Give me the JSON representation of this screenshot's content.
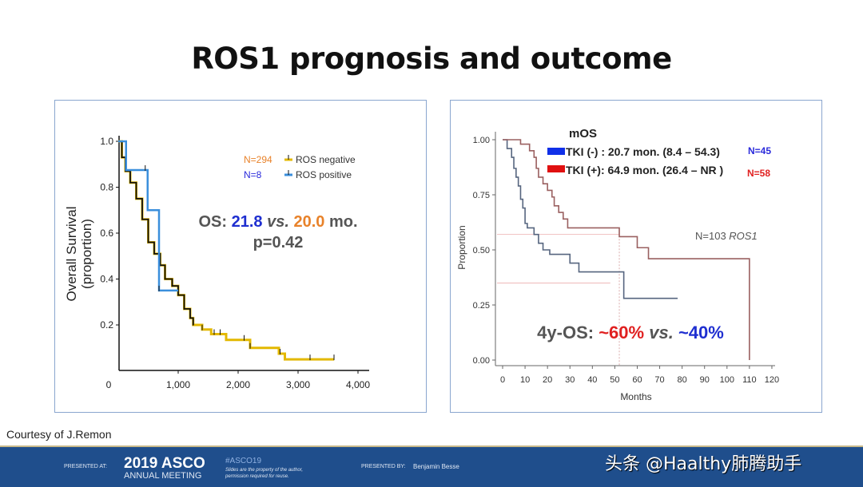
{
  "slide": {
    "title": "ROS1 prognosis and outcome",
    "courtesy": "Courtesy of J.Remon"
  },
  "footer": {
    "presented_at_label": "PRESENTED AT:",
    "meeting_year_name": "2019 ASCO",
    "meeting_sub": "ANNUAL MEETING",
    "hashtag": "#ASCO19",
    "disclaimer_1": "Slides are the property of the author,",
    "disclaimer_2": "permission required for reuse.",
    "presented_by_label": "PRESENTED BY:",
    "presenter": "Benjamin Besse",
    "watermark": "头条 @Haalthy肺腾助手",
    "bg_color": "#1f4e8c"
  },
  "chart_data": [
    {
      "type": "line",
      "subtype": "kaplan-meier-step",
      "ylabel": "Overall Survival (proportion)",
      "xlabel": "",
      "xlim": [
        0,
        4000
      ],
      "ylim": [
        0,
        1.0
      ],
      "x_ticks": [
        "0",
        "1,000",
        "2,000",
        "3,000",
        "4,000"
      ],
      "y_ticks": [
        "0.2",
        "0.4",
        "0.6",
        "0.8",
        "1.0"
      ],
      "grid": false,
      "legend_position": "top-right",
      "legend": [
        {
          "n": "N=294",
          "n_color": "#e8822a",
          "label": "ROS negative",
          "color": "#e3b800"
        },
        {
          "n": "N=8",
          "n_color": "#2a2adb",
          "label": "ROS positive",
          "color": "#3b8fdc"
        }
      ],
      "annotation": {
        "os_label": "OS:",
        "v1": "21.8",
        "vs": "vs.",
        "v2": "20.0",
        "unit": "mo.",
        "p": "p=0.42",
        "v1_color": "#1f2fd0",
        "v2_color": "#e8822a",
        "text_color": "#555555"
      },
      "series": [
        {
          "name": "ROS negative",
          "color": "#e3b800",
          "points": [
            [
              0,
              1.0
            ],
            [
              60,
              0.93
            ],
            [
              120,
              0.87
            ],
            [
              200,
              0.82
            ],
            [
              300,
              0.75
            ],
            [
              400,
              0.66
            ],
            [
              500,
              0.56
            ],
            [
              600,
              0.51
            ],
            [
              700,
              0.46
            ],
            [
              780,
              0.4
            ],
            [
              900,
              0.37
            ],
            [
              1000,
              0.33
            ],
            [
              1100,
              0.27
            ],
            [
              1200,
              0.23
            ],
            [
              1250,
              0.2
            ],
            [
              1400,
              0.18
            ],
            [
              1550,
              0.16
            ],
            [
              1800,
              0.135
            ],
            [
              2200,
              0.1
            ],
            [
              2680,
              0.075
            ],
            [
              2780,
              0.05
            ],
            [
              3600,
              0.05
            ]
          ],
          "censor_x": [
            500,
            700,
            900,
            1000,
            1100,
            1250,
            1400,
            1600,
            1700,
            2100,
            2200,
            2700,
            3200,
            3600
          ]
        },
        {
          "name": "ROS positive",
          "color": "#3b8fdc",
          "points": [
            [
              0,
              1.0
            ],
            [
              130,
              0.875
            ],
            [
              490,
              0.7
            ],
            [
              680,
              0.35
            ],
            [
              1000,
              0.35
            ]
          ],
          "censor_x": [
            450,
            680
          ]
        }
      ]
    },
    {
      "type": "line",
      "subtype": "kaplan-meier-step",
      "ylabel": "Proportion",
      "xlabel": "Months",
      "xlim": [
        0,
        120
      ],
      "ylim": [
        0,
        1.0
      ],
      "x_ticks": [
        "0",
        "10",
        "20",
        "30",
        "40",
        "50",
        "60",
        "70",
        "80",
        "90",
        "100",
        "110",
        "120"
      ],
      "y_ticks": [
        "0.00",
        "0.25",
        "0.50",
        "0.75",
        "1.00"
      ],
      "grid": false,
      "legend_position": "top",
      "legend_title": "mOS",
      "legend": [
        {
          "label": "TKI (-) : 20.7 mon. (8.4 – 54.3)",
          "n": "N=45",
          "n_color": "#2a2adb",
          "color": "#1030e8"
        },
        {
          "label": "TKI (+): 64.9 mon. (26.4 – NR )",
          "n": "N=58",
          "n_color": "#e02020",
          "color": "#e01010"
        }
      ],
      "note": {
        "prefix": "N=103 ",
        "gene": "ROS1"
      },
      "annotation": {
        "label": "4y-OS:",
        "v1": "~60%",
        "vs": "vs.",
        "v2": "~40%",
        "v1_color": "#e02020",
        "v2_color": "#1f2fd0",
        "text_color": "#555555"
      },
      "reference_lines": {
        "x": 52,
        "y": [
          0.57,
          0.35
        ]
      },
      "series": [
        {
          "name": "TKI (-)",
          "color": "#56657f",
          "points": [
            [
              0,
              1.0
            ],
            [
              2,
              0.96
            ],
            [
              4,
              0.92
            ],
            [
              5,
              0.87
            ],
            [
              6,
              0.83
            ],
            [
              7,
              0.79
            ],
            [
              8,
              0.73
            ],
            [
              9,
              0.69
            ],
            [
              10,
              0.62
            ],
            [
              11,
              0.6
            ],
            [
              14,
              0.57
            ],
            [
              16,
              0.53
            ],
            [
              18,
              0.5
            ],
            [
              21,
              0.48
            ],
            [
              30,
              0.44
            ],
            [
              34,
              0.4
            ],
            [
              54,
              0.4
            ],
            [
              54,
              0.28
            ],
            [
              78,
              0.28
            ]
          ]
        },
        {
          "name": "TKI (+)",
          "color": "#9a6060",
          "points": [
            [
              0,
              1.0
            ],
            [
              8,
              0.98
            ],
            [
              12,
              0.95
            ],
            [
              14,
              0.92
            ],
            [
              15,
              0.87
            ],
            [
              16,
              0.83
            ],
            [
              18,
              0.8
            ],
            [
              20,
              0.77
            ],
            [
              22,
              0.74
            ],
            [
              23,
              0.7
            ],
            [
              25,
              0.67
            ],
            [
              27,
              0.64
            ],
            [
              29,
              0.6
            ],
            [
              52,
              0.56
            ],
            [
              60,
              0.51
            ],
            [
              65,
              0.46
            ],
            [
              110,
              0.46
            ],
            [
              110,
              0.0
            ]
          ]
        }
      ]
    }
  ]
}
